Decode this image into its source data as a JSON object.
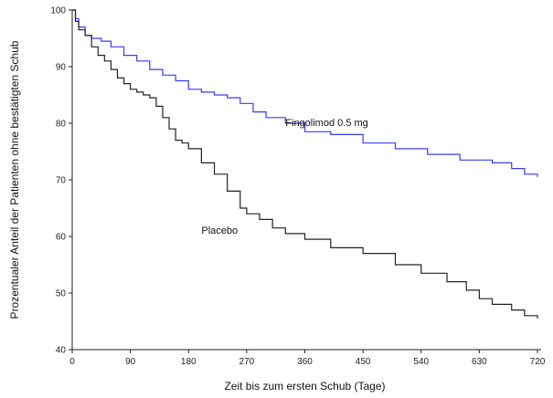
{
  "chart_data": {
    "type": "line",
    "title": "",
    "xlabel": "Zeit bis zum ersten Schub (Tage)",
    "ylabel": "Prozentualer Anteil der Patienten ohne bestätigten Schub",
    "xlim": [
      0,
      720
    ],
    "ylim": [
      40,
      100
    ],
    "xticks": [
      "0",
      "90",
      "180",
      "270",
      "360",
      "450",
      "540",
      "630",
      "720"
    ],
    "yticks": [
      "40",
      "50",
      "60",
      "70",
      "80",
      "90",
      "100"
    ],
    "grid": false,
    "legend": "none",
    "series": [
      {
        "name": "Fingolimod 0.5 mg",
        "color": "#3a3af0",
        "step": true,
        "x": [
          0,
          5,
          10,
          20,
          30,
          45,
          60,
          80,
          100,
          120,
          140,
          160,
          180,
          200,
          220,
          240,
          260,
          280,
          300,
          330,
          360,
          400,
          450,
          500,
          550,
          600,
          650,
          680,
          700,
          720
        ],
        "y": [
          100,
          98.5,
          97,
          95.5,
          95,
          94.5,
          93.5,
          92,
          91,
          89.5,
          88.5,
          87.5,
          86,
          85.5,
          85,
          84.5,
          83.5,
          82,
          81,
          80,
          78.5,
          78,
          76.5,
          75.5,
          74.5,
          73.5,
          73,
          72,
          71,
          70.5
        ]
      },
      {
        "name": "Placebo",
        "color": "#222222",
        "step": true,
        "x": [
          0,
          5,
          10,
          20,
          30,
          40,
          50,
          60,
          70,
          80,
          90,
          100,
          110,
          120,
          130,
          140,
          150,
          160,
          170,
          180,
          200,
          220,
          240,
          260,
          270,
          290,
          310,
          330,
          360,
          400,
          450,
          500,
          540,
          580,
          610,
          630,
          650,
          680,
          700,
          720
        ],
        "y": [
          100,
          98,
          96.5,
          95.5,
          93.5,
          92,
          91,
          89.5,
          88,
          87,
          86,
          85.5,
          85,
          84.5,
          83,
          81,
          79,
          77,
          76.5,
          75.5,
          73,
          71,
          68,
          65,
          64,
          63,
          61.5,
          60.5,
          59.5,
          58,
          57,
          55,
          53.5,
          52,
          50.5,
          49,
          48,
          47,
          46,
          45.5
        ]
      }
    ],
    "annotations": [
      {
        "text": "Fingolimod 0.5 mg",
        "series": 0
      },
      {
        "text": "Placebo",
        "series": 1
      }
    ]
  }
}
